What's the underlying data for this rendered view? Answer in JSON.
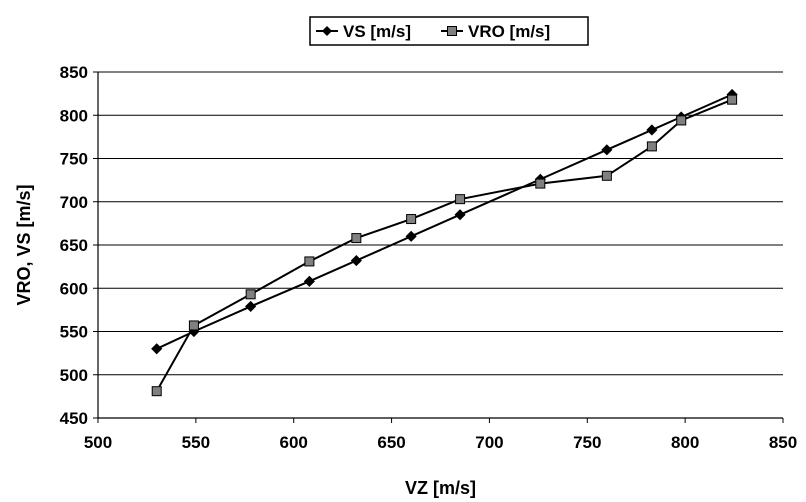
{
  "chart_data": {
    "type": "line",
    "title": "",
    "xlabel": "VZ [m/s]",
    "ylabel": "VRO, VS [m/s]",
    "xlim": [
      500,
      850
    ],
    "ylim": [
      450,
      850
    ],
    "x_ticks": [
      500,
      550,
      600,
      650,
      700,
      750,
      800,
      850
    ],
    "y_ticks": [
      450,
      500,
      550,
      600,
      650,
      700,
      750,
      800,
      850
    ],
    "grid": "horizontal",
    "legend_position": "top",
    "series": [
      {
        "name": "VS [m/s]",
        "marker": "diamond",
        "color": "#000000",
        "points": [
          [
            530,
            530
          ],
          [
            549,
            550
          ],
          [
            578,
            579
          ],
          [
            608,
            608
          ],
          [
            632,
            632
          ],
          [
            660,
            660
          ],
          [
            685,
            685
          ],
          [
            726,
            726
          ],
          [
            760,
            760
          ],
          [
            783,
            783
          ],
          [
            798,
            798
          ],
          [
            824,
            824
          ]
        ]
      },
      {
        "name": "VRO [m/s]",
        "marker": "square",
        "color": "#808080",
        "points": [
          [
            530,
            481
          ],
          [
            549,
            557
          ],
          [
            578,
            593
          ],
          [
            608,
            631
          ],
          [
            632,
            658
          ],
          [
            660,
            680
          ],
          [
            685,
            703
          ],
          [
            726,
            721
          ],
          [
            760,
            730
          ],
          [
            783,
            764
          ],
          [
            798,
            794
          ],
          [
            824,
            818
          ]
        ]
      }
    ]
  }
}
